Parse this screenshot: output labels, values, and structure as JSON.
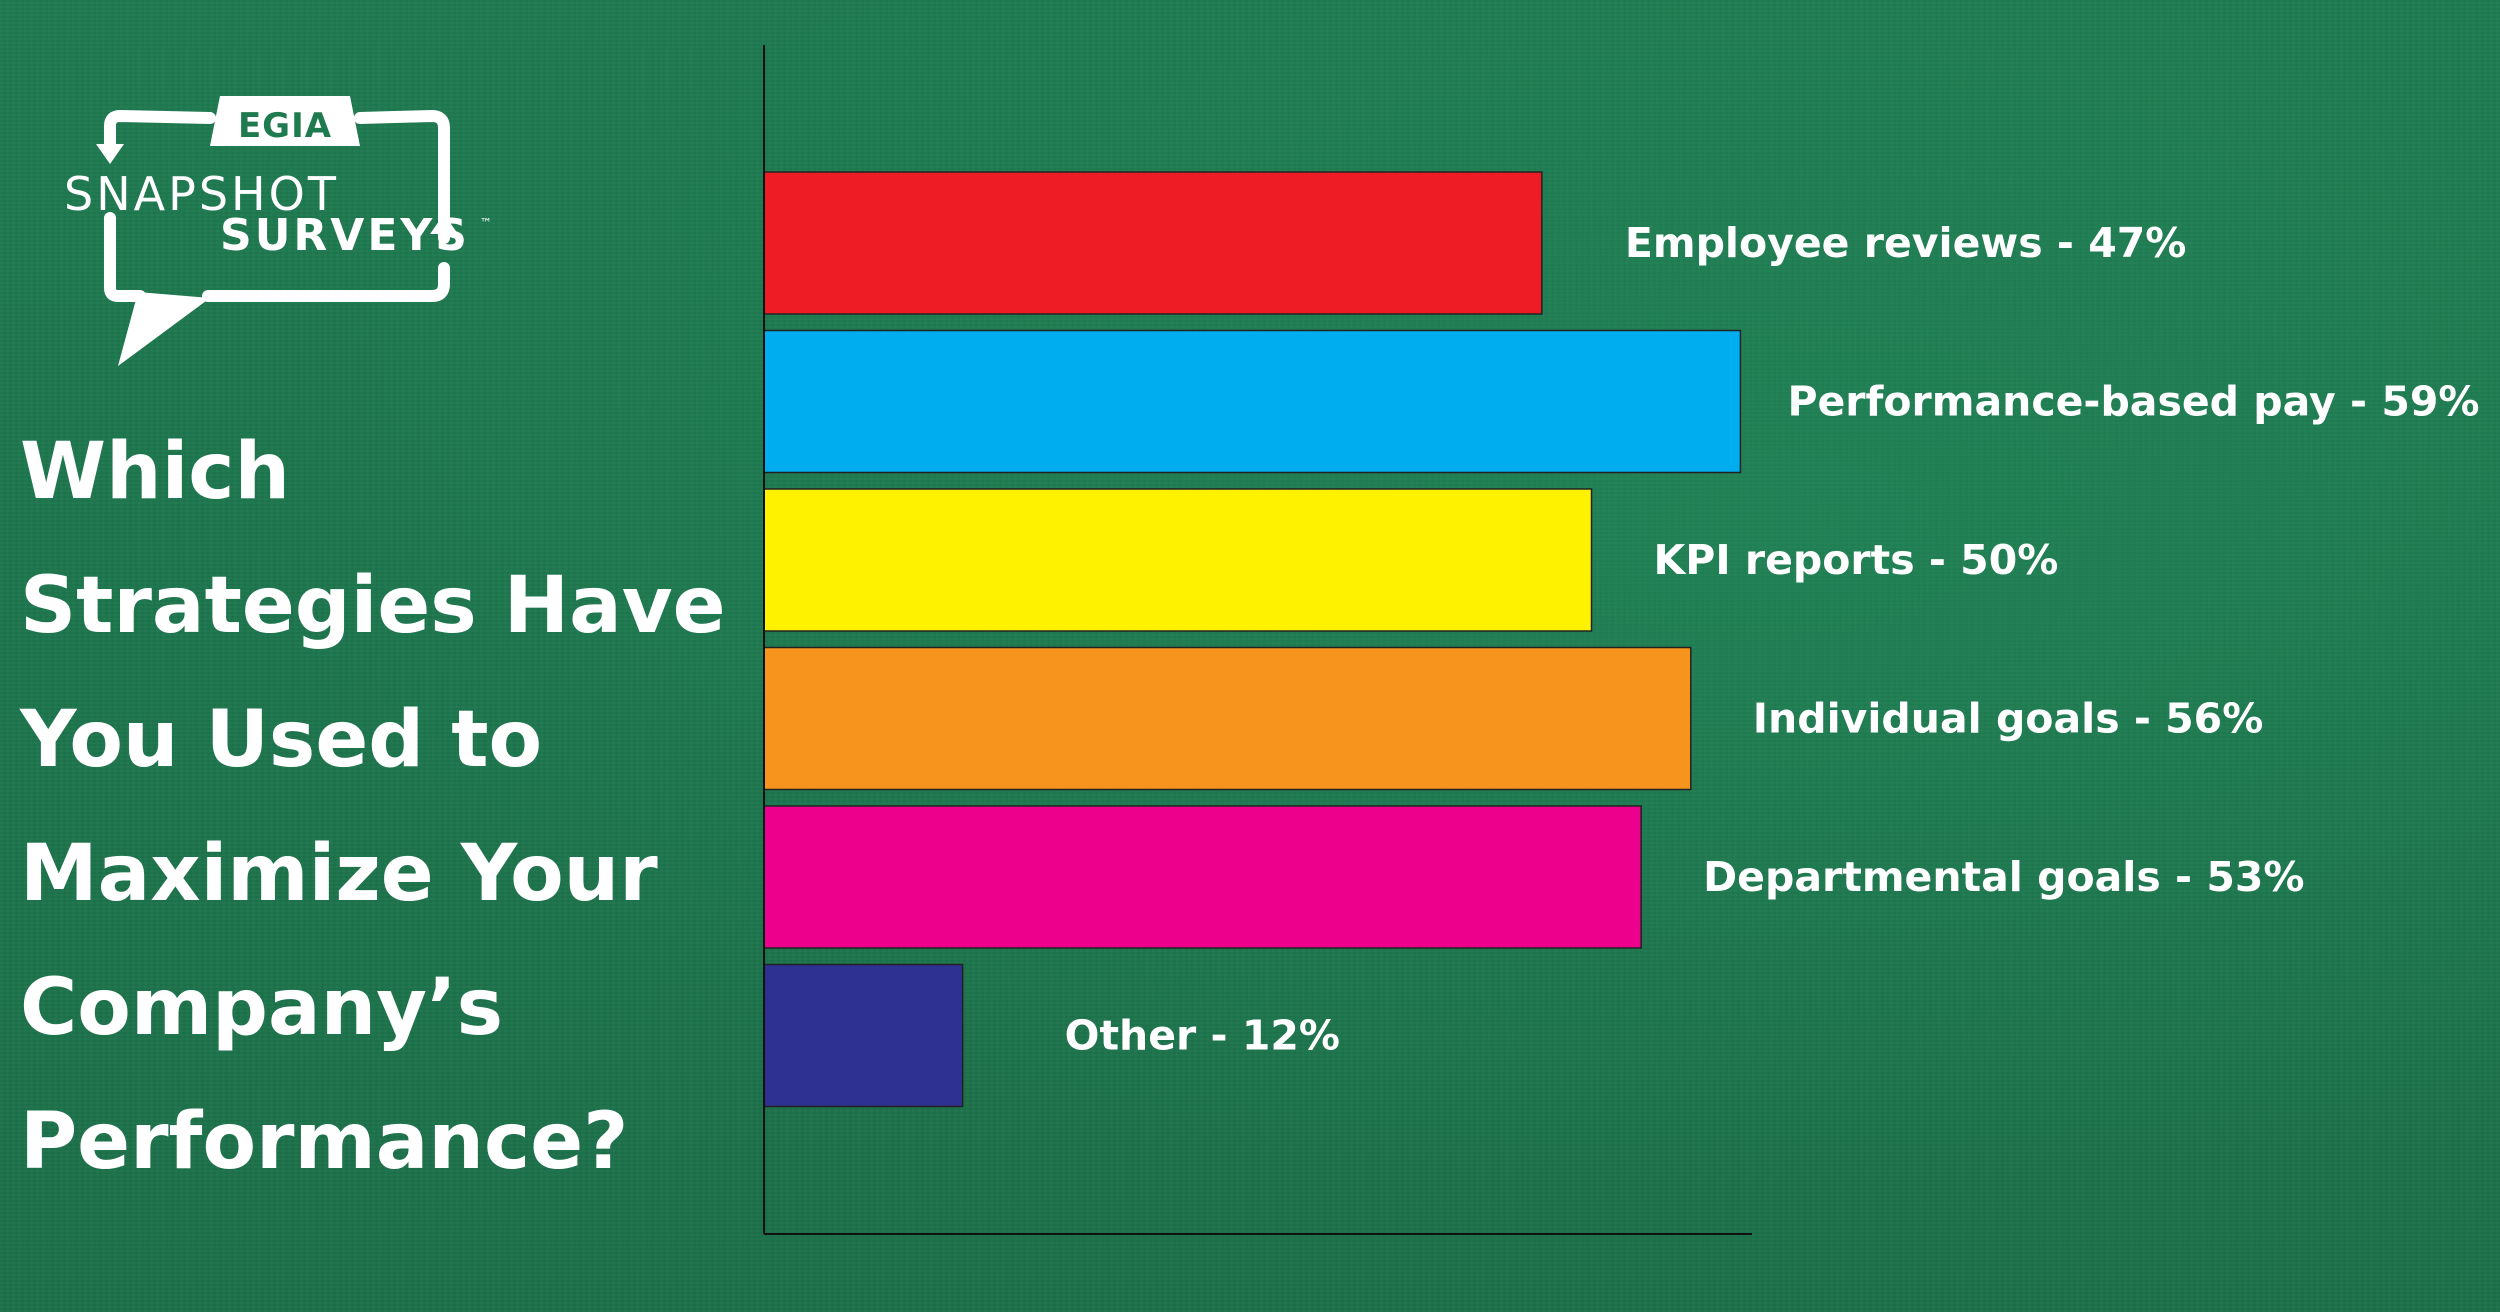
{
  "logo": {
    "brand": "EGIA",
    "line1": "SNAPSHOT",
    "line2": "SURVEYS",
    "tm": "™"
  },
  "question": {
    "lines": [
      "Which",
      "Strategies Have",
      "You Used to",
      "Maximize Your",
      "Company’s",
      "Performance?"
    ]
  },
  "chart_data": {
    "type": "bar",
    "orientation": "horizontal",
    "title": "",
    "xlabel": "",
    "ylabel": "",
    "xlim": [
      0,
      100
    ],
    "grid": false,
    "legend": "none",
    "categories": [
      "Employee reviews",
      "Performance-based pay",
      "KPI reports",
      "Individual goals",
      "Departmental goals",
      "Other"
    ],
    "values": [
      47,
      59,
      50,
      56,
      53,
      12
    ],
    "labels": [
      "Employee reviews - 47%",
      "Performance-based pay - 59%",
      "KPI reports - 50%",
      "Individual goals - 56%",
      "Departmental goals - 53%",
      "Other - 12%"
    ],
    "colors": [
      "#ee1c25",
      "#00aeef",
      "#fff200",
      "#f7941d",
      "#ec008c",
      "#2e3192"
    ]
  }
}
